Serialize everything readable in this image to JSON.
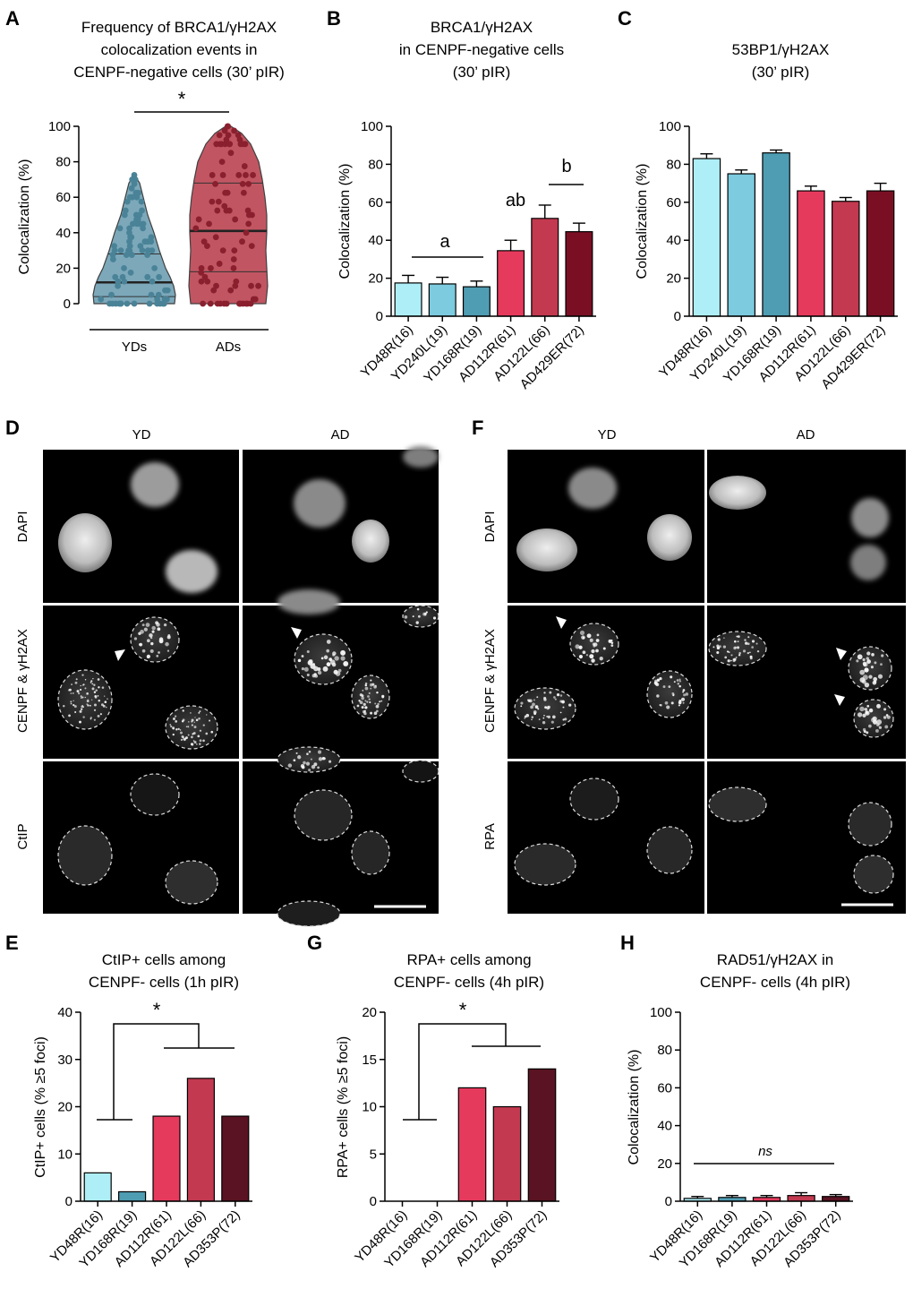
{
  "panel_letters": {
    "A": "A",
    "B": "B",
    "C": "C",
    "D": "D",
    "E": "E",
    "F": "F",
    "G": "G",
    "H": "H"
  },
  "colors": {
    "yd1": "#aeeef6",
    "yd2": "#7ccbdf",
    "yd3": "#4f9db3",
    "ad1": "#e63a5d",
    "ad2": "#c23950",
    "ad3": "#7a0f24",
    "ad4": "#5a1322",
    "violin_yd": "#6e9fb3",
    "violin_ad": "#bb4452",
    "dot_yd": "#4a8397",
    "dot_ad": "#8a1f2e"
  },
  "chart_data": [
    {
      "panel": "A",
      "type": "violin",
      "title": [
        "Frequency of BRCA1/γH2AX",
        "colocalization events in",
        "CENPF-negative cells (30’ pIR)"
      ],
      "ylabel": "Colocalization (%)",
      "ylim": [
        0,
        100
      ],
      "yticks": [
        "0",
        "20",
        "40",
        "60",
        "80",
        "100"
      ],
      "categories": [
        "YDs",
        "ADs"
      ],
      "medians": [
        12,
        41
      ],
      "quartiles": [
        [
          4,
          28
        ],
        [
          18,
          68
        ]
      ],
      "max": [
        72,
        100
      ],
      "significance": "*"
    },
    {
      "panel": "B",
      "type": "bar",
      "title": [
        "BRCA1/γH2AX",
        "in CENPF-negative cells",
        "(30’ pIR)"
      ],
      "ylabel": "Colocalization (%)",
      "ylim": [
        0,
        100
      ],
      "yticks": [
        "0",
        "20",
        "40",
        "60",
        "80",
        "100"
      ],
      "categories": [
        "YD48R(16)",
        "YD240L(19)",
        "YD168R(19)",
        "AD112R(61)",
        "AD122L(66)",
        "AD429ER(72)"
      ],
      "values": [
        17.5,
        17,
        15.5,
        34.5,
        51.5,
        44.5
      ],
      "errors": [
        4,
        3.5,
        3,
        5.5,
        7,
        4.5
      ],
      "annotations": [
        "a",
        "ab",
        "b"
      ]
    },
    {
      "panel": "C",
      "type": "bar",
      "title": [
        "53BP1/γH2AX",
        "(30’ pIR)"
      ],
      "ylabel": "Colocalization (%)",
      "ylim": [
        0,
        100
      ],
      "yticks": [
        "0",
        "20",
        "40",
        "60",
        "80",
        "100"
      ],
      "categories": [
        "YD48R(16)",
        "YD240L(19)",
        "YD168R(19)",
        "AD112R(61)",
        "AD122L(66)",
        "AD429ER(72)"
      ],
      "values": [
        83,
        75,
        86,
        66,
        60.5,
        66
      ],
      "errors": [
        2.5,
        2,
        1.5,
        2.5,
        2,
        4
      ]
    },
    {
      "panel": "E",
      "type": "bar",
      "title": [
        "CtIP+ cells among",
        "CENPF- cells (1h pIR)"
      ],
      "ylabel": "CtIP+ cells (% ≥5 foci)",
      "ylim": [
        0,
        40
      ],
      "yticks": [
        "0",
        "10",
        "20",
        "30",
        "40"
      ],
      "categories": [
        "YD48R(16)",
        "YD168R(19)",
        "AD112R(61)",
        "AD122L(66)",
        "AD353P(72)"
      ],
      "values": [
        6,
        2,
        18,
        26,
        18
      ],
      "significance": "*"
    },
    {
      "panel": "G",
      "type": "bar",
      "title": [
        "RPA+ cells among",
        "CENPF- cells (4h pIR)"
      ],
      "ylabel": "RPA+ cells (% ≥5 foci)",
      "ylim": [
        0,
        20
      ],
      "yticks": [
        "0",
        "5",
        "10",
        "15",
        "20"
      ],
      "categories": [
        "YD48R(16)",
        "YD168R(19)",
        "AD112R(61)",
        "AD122L(66)",
        "AD353P(72)"
      ],
      "values": [
        0,
        0,
        12,
        10,
        14
      ],
      "significance": "*"
    },
    {
      "panel": "H",
      "type": "bar",
      "title": [
        "RAD51/γH2AX in",
        "CENPF- cells (4h pIR)"
      ],
      "ylabel": "Colocalization (%)",
      "ylim": [
        0,
        100
      ],
      "yticks": [
        "0",
        "20",
        "40",
        "60",
        "80",
        "100"
      ],
      "categories": [
        "YD48R(16)",
        "YD168R(19)",
        "AD112R(61)",
        "AD122L(66)",
        "AD353P(72)"
      ],
      "values": [
        1.5,
        2,
        2,
        3,
        2.5
      ],
      "errors": [
        1,
        1,
        1,
        1.5,
        1
      ],
      "significance": "ns"
    }
  ],
  "micrographs": {
    "D": {
      "columns": [
        "YD",
        "AD"
      ],
      "rows": [
        "DAPI",
        "CENPF & γH2AX",
        "CtIP"
      ]
    },
    "F": {
      "columns": [
        "YD",
        "AD"
      ],
      "rows": [
        "DAPI",
        "CENPF & γH2AX",
        "RPA"
      ]
    }
  }
}
